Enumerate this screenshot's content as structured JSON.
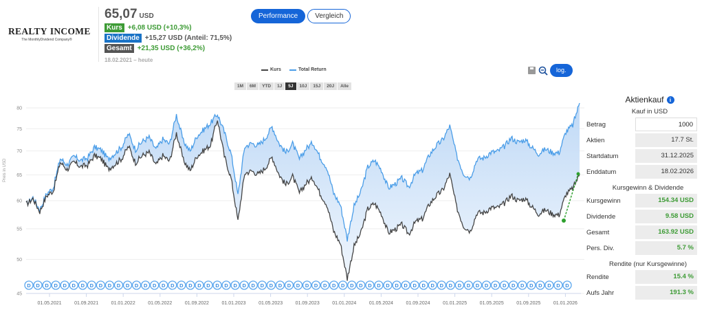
{
  "company": {
    "logo_left": "REALTY",
    "logo_right": "INCOME",
    "tagline": "The MonthlyDividend Company®",
    "colors": {
      "house_red": "#e32b2b",
      "house_orange": "#f2a23a"
    }
  },
  "quote": {
    "price": "65,07",
    "currency": "USD",
    "kurs_label": "Kurs",
    "kurs_value": "+6,08 USD (+10,3%)",
    "dividende_label": "Dividende",
    "dividende_value": "+15,27 USD (Anteil: 71,5%)",
    "gesamt_label": "Gesamt",
    "gesamt_value": "+21,35 USD (+36,2%)",
    "range": "18.02.2021 – heute"
  },
  "view_toggle": {
    "performance": "Performance",
    "vergleich": "Vergleich",
    "active": "performance"
  },
  "legend": {
    "kurs": "Kurs",
    "total_return": "Total Return"
  },
  "range_buttons": [
    "1M",
    "6M",
    "YTD",
    "1J",
    "5J",
    "10J",
    "15J",
    "20J",
    "Alle"
  ],
  "range_active": "5J",
  "tools": {
    "log_label": "log."
  },
  "colors": {
    "kurs": "#444444",
    "total_return": "#4a9de8",
    "fill": "#cfe2f7",
    "accent": "#1565d8",
    "green": "#3d9b35",
    "dividend_marker": "#5aa6ee"
  },
  "chart_data": {
    "type": "line",
    "title": "",
    "xlabel": "",
    "ylabel": "Preis in USD",
    "y_scale": "log",
    "ylim": [
      45,
      81
    ],
    "yticks": [
      45,
      50,
      55,
      60,
      65,
      70,
      75,
      80
    ],
    "grid": true,
    "legend_position": "top-center",
    "xticks": [
      "01.05.2021",
      "01.09.2021",
      "01.01.2022",
      "01.05.2022",
      "01.09.2022",
      "01.01.2023",
      "01.05.2023",
      "01.09.2023",
      "01.01.2024",
      "01.05.2024",
      "01.09.2024",
      "01.01.2025",
      "01.05.2025",
      "01.09.2025",
      "01.01.2026"
    ],
    "x_range": [
      "18.02.2021",
      "18.02.2026"
    ],
    "series": [
      {
        "name": "Kurs",
        "values": [
          59.3,
          60.4,
          58.0,
          60.9,
          61.9,
          67.6,
          66.1,
          67.6,
          66.7,
          67.0,
          69.0,
          68.3,
          66.2,
          67.2,
          68.4,
          71.0,
          67.5,
          69.0,
          69.7,
          67.0,
          69.0,
          67.8,
          74.0,
          68.1,
          65.8,
          68.9,
          70.1,
          71.3,
          77.2,
          68.9,
          64.3,
          56.3,
          65.3,
          65.8,
          65.1,
          66.4,
          68.7,
          65.1,
          63.0,
          64.7,
          61.4,
          63.4,
          64.3,
          61.4,
          59.3,
          54.6,
          52.5,
          47.1,
          52.1,
          54.3,
          58.5,
          59.5,
          57.6,
          54.3,
          54.9,
          55.7,
          54.1,
          56.2,
          56.7,
          59.3,
          60.9,
          62.0,
          65.1,
          58.8,
          55.5,
          54.6,
          57.8,
          57.8,
          58.7,
          58.7,
          59.5,
          61.0,
          60.0,
          60.4,
          58.9,
          57.6,
          58.3,
          57.6,
          57.4,
          61.2,
          62.3,
          65.07
        ]
      },
      {
        "name": "Total Return",
        "values": [
          59.3,
          60.6,
          58.3,
          61.3,
          62.5,
          68.4,
          67.1,
          68.8,
          68.0,
          68.5,
          70.8,
          70.2,
          68.3,
          69.5,
          70.9,
          73.8,
          70.3,
          72.1,
          73.0,
          70.3,
          72.6,
          71.5,
          78.3,
          72.2,
          69.9,
          73.3,
          74.8,
          76.3,
          78.5,
          74.2,
          69.4,
          61.0,
          70.9,
          71.7,
          71.2,
          72.8,
          75.5,
          71.7,
          69.6,
          71.6,
          68.2,
          70.6,
          71.8,
          68.7,
          66.5,
          61.4,
          59.2,
          53.2,
          59.0,
          61.7,
          66.6,
          68.0,
          66.0,
          62.4,
          63.2,
          64.3,
          62.6,
          65.2,
          65.9,
          69.1,
          71.1,
          72.5,
          75.6,
          69.0,
          65.3,
          64.4,
          68.3,
          68.5,
          69.7,
          69.9,
          71.0,
          72.9,
          71.9,
          72.5,
          70.8,
          69.4,
          70.4,
          69.7,
          69.6,
          74.3,
          75.8,
          81.2
        ]
      }
    ],
    "annotations": [
      {
        "type": "purchase-line",
        "from": "31.12.2025",
        "to": "18.02.2026",
        "color": "#2ea02e"
      },
      {
        "type": "dividend-markers",
        "label": "D",
        "count": 61
      }
    ]
  },
  "sidebar": {
    "title": "Aktienkauf",
    "subtitle": "Kauf in USD",
    "rows": [
      {
        "label": "Betrag",
        "value": "1000"
      },
      {
        "label": "Aktien",
        "value": "17.7 St."
      },
      {
        "label": "Startdatum",
        "value": "31.12.2025"
      },
      {
        "label": "Enddatum",
        "value": "18.02.2026"
      }
    ],
    "section2": "Kursgewinn & Dividende",
    "rows2": [
      {
        "label": "Kursgewinn",
        "value": "154.34 USD"
      },
      {
        "label": "Dividende",
        "value": "9.58 USD"
      },
      {
        "label": "Gesamt",
        "value": "163.92 USD"
      },
      {
        "label": "Pers. Div.",
        "value": "5.7 %"
      }
    ],
    "section3": "Rendite (nur Kursgewinne)",
    "rows3": [
      {
        "label": "Rendite",
        "value": "15.4 %"
      },
      {
        "label": "Aufs Jahr",
        "value": "191.3 %"
      }
    ]
  }
}
